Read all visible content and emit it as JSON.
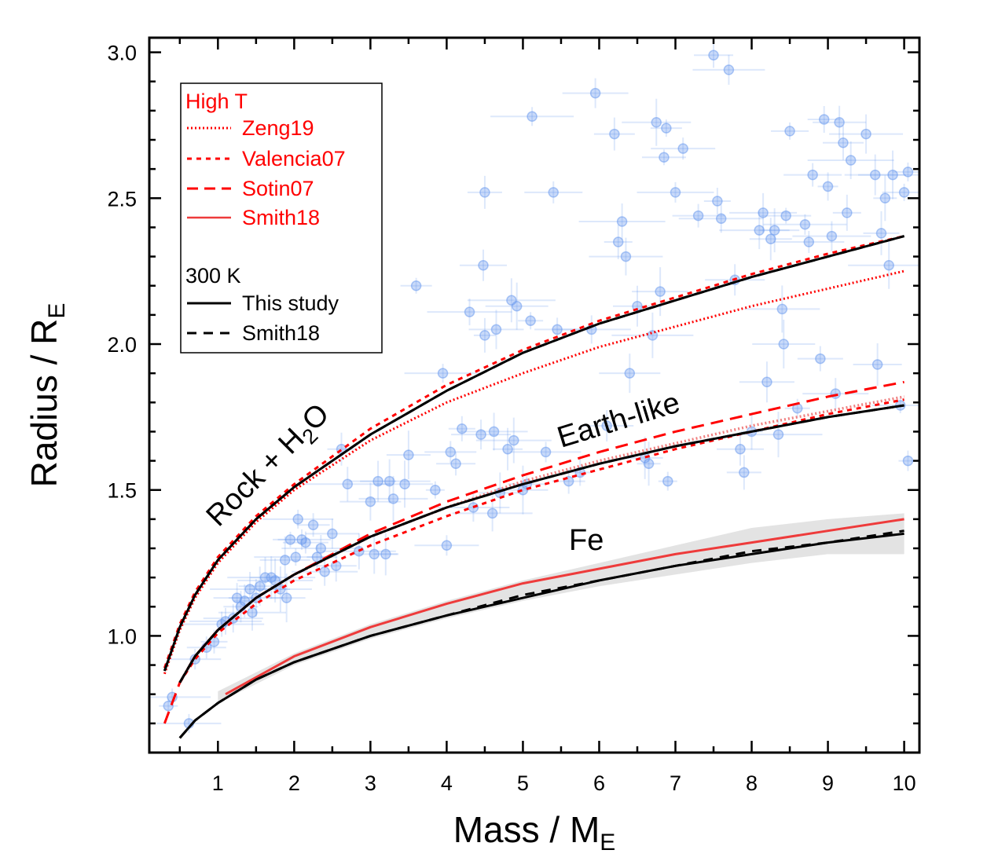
{
  "chart_data": {
    "type": "line",
    "xlabel": "Mass / M",
    "xlabel_sub": "E",
    "ylabel": "Radius / R",
    "ylabel_sub": "E",
    "xlim": [
      0.1,
      10.2
    ],
    "ylim": [
      0.6,
      3.05
    ],
    "xticks": [
      1,
      2,
      3,
      4,
      5,
      6,
      7,
      8,
      9,
      10
    ],
    "yticks": [
      1.0,
      1.5,
      2.0,
      2.5,
      3.0
    ],
    "ytick_labels": [
      "1.0",
      "1.5",
      "2.0",
      "2.5",
      "3.0"
    ],
    "annotations": {
      "rock_prefix": "Rock + H",
      "rock_sub": "2",
      "rock_suffix": "O",
      "earth": "Earth-like",
      "fe": "Fe"
    },
    "legend": {
      "high_t_title": "High T",
      "high_t_entries": [
        "Zeng19",
        "Valencia07",
        "Sotin07",
        "Smith18"
      ],
      "cold_title": "300 K",
      "cold_entries": [
        "This study",
        "Smith18"
      ]
    },
    "colors": {
      "red": "#ff0000",
      "smith_red": "#ee3b3b",
      "pink": "#f08080",
      "black": "#000000",
      "point": "#6495ed",
      "band": "#d9d9d9"
    },
    "series": [
      {
        "name": "This study (300 K) - Rock + H2O",
        "group": "rock",
        "style": "solid-black",
        "x": [
          0.3,
          0.5,
          0.7,
          1,
          1.5,
          2,
          3,
          4,
          5,
          6,
          7,
          8,
          9,
          10
        ],
        "y": [
          0.88,
          1.03,
          1.14,
          1.26,
          1.4,
          1.51,
          1.69,
          1.84,
          1.97,
          2.07,
          2.15,
          2.23,
          2.3,
          2.37
        ]
      },
      {
        "name": "Smith18 (300 K) - Rock + H2O",
        "group": "rock",
        "style": "dashed-black",
        "x": [
          0.3,
          0.5,
          0.7,
          1,
          1.5,
          2,
          3,
          4,
          5,
          6,
          7,
          8,
          9,
          10
        ],
        "y": [
          0.88,
          1.03,
          1.14,
          1.26,
          1.4,
          1.51,
          1.69,
          1.84,
          1.97,
          2.07,
          2.15,
          2.23,
          2.3,
          2.37
        ]
      },
      {
        "name": "Valencia07 - Rock + H2O",
        "group": "rock",
        "style": "dashed-red",
        "x": [
          0.3,
          0.5,
          0.7,
          1,
          1.5,
          2,
          3,
          4,
          5,
          6,
          7,
          8,
          9,
          10
        ],
        "y": [
          0.89,
          1.04,
          1.15,
          1.27,
          1.41,
          1.52,
          1.71,
          1.86,
          1.98,
          2.08,
          2.16,
          2.24,
          2.31,
          2.37
        ]
      },
      {
        "name": "Zeng19 - Rock + H2O",
        "group": "rock",
        "style": "dotted-red",
        "x": [
          0.3,
          0.5,
          0.7,
          1,
          1.5,
          2,
          3,
          4,
          5,
          6,
          7,
          8,
          9,
          10
        ],
        "y": [
          0.87,
          1.02,
          1.13,
          1.25,
          1.39,
          1.5,
          1.67,
          1.8,
          1.9,
          1.99,
          2.06,
          2.13,
          2.19,
          2.25
        ]
      },
      {
        "name": "This study (300 K) - Earth-like",
        "group": "earth",
        "style": "solid-black",
        "x": [
          0.5,
          0.7,
          1,
          1.5,
          2,
          3,
          4,
          5,
          6,
          7,
          8,
          9,
          10
        ],
        "y": [
          0.84,
          0.93,
          1.02,
          1.13,
          1.21,
          1.34,
          1.44,
          1.52,
          1.59,
          1.65,
          1.7,
          1.75,
          1.79
        ]
      },
      {
        "name": "Smith18 (300 K) - Earth-like",
        "group": "earth",
        "style": "dashed-black",
        "x": [
          0.5,
          0.7,
          1,
          1.5,
          2,
          3,
          4,
          5,
          6,
          7,
          8,
          9,
          10
        ],
        "y": [
          0.84,
          0.93,
          1.02,
          1.13,
          1.21,
          1.34,
          1.44,
          1.52,
          1.59,
          1.65,
          1.7,
          1.75,
          1.79
        ]
      },
      {
        "name": "Sotin07 - Earth-like",
        "group": "earth",
        "style": "longdash-red",
        "x": [
          0.3,
          0.5,
          0.7,
          1,
          1.5,
          2,
          3,
          4,
          5,
          6,
          7,
          8,
          9,
          10
        ],
        "y": [
          0.7,
          0.84,
          0.93,
          1.02,
          1.13,
          1.21,
          1.35,
          1.46,
          1.55,
          1.63,
          1.7,
          1.76,
          1.82,
          1.87
        ]
      },
      {
        "name": "Valencia07 - Earth-like",
        "group": "earth",
        "style": "dashed-red",
        "x": [
          0.5,
          0.7,
          1,
          1.5,
          2,
          3,
          4,
          5,
          6,
          7,
          8,
          9,
          10
        ],
        "y": [
          0.84,
          0.92,
          1.01,
          1.11,
          1.19,
          1.31,
          1.41,
          1.5,
          1.57,
          1.64,
          1.7,
          1.76,
          1.81
        ]
      },
      {
        "name": "Zeng19 - Earth-like",
        "group": "earth",
        "style": "dotted-pink",
        "x": [
          0.5,
          0.7,
          1,
          1.5,
          2,
          3,
          4,
          5,
          6,
          7,
          8,
          9,
          10
        ],
        "y": [
          0.84,
          0.93,
          1.02,
          1.13,
          1.21,
          1.34,
          1.44,
          1.53,
          1.6,
          1.66,
          1.72,
          1.77,
          1.82
        ]
      },
      {
        "name": "This study (300 K) - Fe",
        "group": "fe",
        "style": "solid-black",
        "x": [
          0.5,
          0.7,
          1,
          1.5,
          2,
          3,
          4,
          5,
          6,
          7,
          8,
          9,
          10
        ],
        "y": [
          0.65,
          0.71,
          0.77,
          0.85,
          0.91,
          1.0,
          1.07,
          1.13,
          1.19,
          1.24,
          1.28,
          1.32,
          1.35
        ]
      },
      {
        "name": "Smith18 (300 K) - Fe",
        "group": "fe",
        "style": "dashed-black",
        "x": [
          0.5,
          0.7,
          1,
          1.5,
          2,
          3,
          4,
          5,
          6,
          7,
          8,
          9,
          10
        ],
        "y": [
          0.65,
          0.71,
          0.77,
          0.85,
          0.91,
          1.0,
          1.07,
          1.14,
          1.19,
          1.24,
          1.29,
          1.32,
          1.36
        ]
      },
      {
        "name": "Smith18 (High T) - Fe",
        "group": "fe",
        "style": "solid-red",
        "x": [
          1.1,
          2,
          3,
          4,
          5,
          6,
          7,
          8,
          9,
          10
        ],
        "y": [
          0.8,
          0.93,
          1.03,
          1.11,
          1.18,
          1.23,
          1.28,
          1.32,
          1.36,
          1.4
        ]
      }
    ],
    "band": {
      "name": "Fe uncertainty band",
      "x": [
        1,
        2,
        3,
        4,
        5,
        6,
        7,
        8,
        9,
        10
      ],
      "y_low": [
        0.77,
        0.9,
        0.99,
        1.06,
        1.12,
        1.17,
        1.21,
        1.25,
        1.28,
        1.28
      ],
      "y_high": [
        0.81,
        0.94,
        1.04,
        1.12,
        1.19,
        1.25,
        1.31,
        1.37,
        1.4,
        1.42
      ]
    },
    "points": [
      [
        0.35,
        0.76
      ],
      [
        0.4,
        0.79
      ],
      [
        0.62,
        0.7
      ],
      [
        0.7,
        0.92
      ],
      [
        0.85,
        0.96
      ],
      [
        0.95,
        0.98
      ],
      [
        1.05,
        1.04
      ],
      [
        1.1,
        1.05
      ],
      [
        1.2,
        1.06
      ],
      [
        1.25,
        1.13
      ],
      [
        1.3,
        1.1
      ],
      [
        1.35,
        1.12
      ],
      [
        1.42,
        1.16
      ],
      [
        1.45,
        1.08
      ],
      [
        1.5,
        1.13
      ],
      [
        1.55,
        1.17
      ],
      [
        1.62,
        1.2
      ],
      [
        1.7,
        1.2
      ],
      [
        1.75,
        1.19
      ],
      [
        1.82,
        1.16
      ],
      [
        1.88,
        1.26
      ],
      [
        1.9,
        1.13
      ],
      [
        1.95,
        1.33
      ],
      [
        2.02,
        1.27
      ],
      [
        2.05,
        1.4
      ],
      [
        2.1,
        1.33
      ],
      [
        2.15,
        1.32
      ],
      [
        2.25,
        1.38
      ],
      [
        2.3,
        1.27
      ],
      [
        2.35,
        1.3
      ],
      [
        2.4,
        1.22
      ],
      [
        2.5,
        1.35
      ],
      [
        2.55,
        1.24
      ],
      [
        2.62,
        1.64
      ],
      [
        2.7,
        1.52
      ],
      [
        2.85,
        1.29
      ],
      [
        3.0,
        1.46
      ],
      [
        3.05,
        1.28
      ],
      [
        3.1,
        1.53
      ],
      [
        3.2,
        1.28
      ],
      [
        3.25,
        1.53
      ],
      [
        3.3,
        1.47
      ],
      [
        3.45,
        1.52
      ],
      [
        3.5,
        1.62
      ],
      [
        3.6,
        2.2
      ],
      [
        3.85,
        1.5
      ],
      [
        3.95,
        1.9
      ],
      [
        4.0,
        1.31
      ],
      [
        4.05,
        1.63
      ],
      [
        4.12,
        1.59
      ],
      [
        4.2,
        1.71
      ],
      [
        4.3,
        2.11
      ],
      [
        4.35,
        1.44
      ],
      [
        4.45,
        1.69
      ],
      [
        4.48,
        2.27
      ],
      [
        4.5,
        2.52
      ],
      [
        4.5,
        2.03
      ],
      [
        4.6,
        1.42
      ],
      [
        4.62,
        1.7
      ],
      [
        4.65,
        2.05
      ],
      [
        4.7,
        1.49
      ],
      [
        4.8,
        1.64
      ],
      [
        4.85,
        2.15
      ],
      [
        4.88,
        1.67
      ],
      [
        4.92,
        2.13
      ],
      [
        5.0,
        1.5
      ],
      [
        5.05,
        1.52
      ],
      [
        5.1,
        2.08
      ],
      [
        5.12,
        2.78
      ],
      [
        5.3,
        1.63
      ],
      [
        5.4,
        2.52
      ],
      [
        5.45,
        2.05
      ],
      [
        5.6,
        1.53
      ],
      [
        5.75,
        1.56
      ],
      [
        5.9,
        2.05
      ],
      [
        5.95,
        2.86
      ],
      [
        6.1,
        1.72
      ],
      [
        6.2,
        2.72
      ],
      [
        6.25,
        2.35
      ],
      [
        6.3,
        2.42
      ],
      [
        6.35,
        2.3
      ],
      [
        6.4,
        1.9
      ],
      [
        6.5,
        2.13
      ],
      [
        6.6,
        1.61
      ],
      [
        6.65,
        1.59
      ],
      [
        6.7,
        2.03
      ],
      [
        6.75,
        2.76
      ],
      [
        6.8,
        2.18
      ],
      [
        6.85,
        2.64
      ],
      [
        6.88,
        2.74
      ],
      [
        6.9,
        1.53
      ],
      [
        7.0,
        2.52
      ],
      [
        7.1,
        2.67
      ],
      [
        7.3,
        2.44
      ],
      [
        7.5,
        2.99
      ],
      [
        7.55,
        2.49
      ],
      [
        7.6,
        2.43
      ],
      [
        7.7,
        2.94
      ],
      [
        7.78,
        2.22
      ],
      [
        7.85,
        1.64
      ],
      [
        7.9,
        1.56
      ],
      [
        8.0,
        1.7
      ],
      [
        8.1,
        2.39
      ],
      [
        8.15,
        2.45
      ],
      [
        8.2,
        1.87
      ],
      [
        8.25,
        2.36
      ],
      [
        8.3,
        2.39
      ],
      [
        8.35,
        1.69
      ],
      [
        8.4,
        2.12
      ],
      [
        8.42,
        2.0
      ],
      [
        8.45,
        2.44
      ],
      [
        8.5,
        2.73
      ],
      [
        8.6,
        1.78
      ],
      [
        8.7,
        2.41
      ],
      [
        8.75,
        2.35
      ],
      [
        8.8,
        2.58
      ],
      [
        8.9,
        1.95
      ],
      [
        8.95,
        2.77
      ],
      [
        9.0,
        2.54
      ],
      [
        9.05,
        2.37
      ],
      [
        9.1,
        1.83
      ],
      [
        9.15,
        2.76
      ],
      [
        9.2,
        2.69
      ],
      [
        9.25,
        2.45
      ],
      [
        9.3,
        2.63
      ],
      [
        9.5,
        2.72
      ],
      [
        9.62,
        2.58
      ],
      [
        9.65,
        1.93
      ],
      [
        9.7,
        2.38
      ],
      [
        9.75,
        2.5
      ],
      [
        9.8,
        2.27
      ],
      [
        9.85,
        2.58
      ],
      [
        9.95,
        1.79
      ],
      [
        10.0,
        2.52
      ],
      [
        10.05,
        2.59
      ],
      [
        10.05,
        1.6
      ]
    ]
  }
}
